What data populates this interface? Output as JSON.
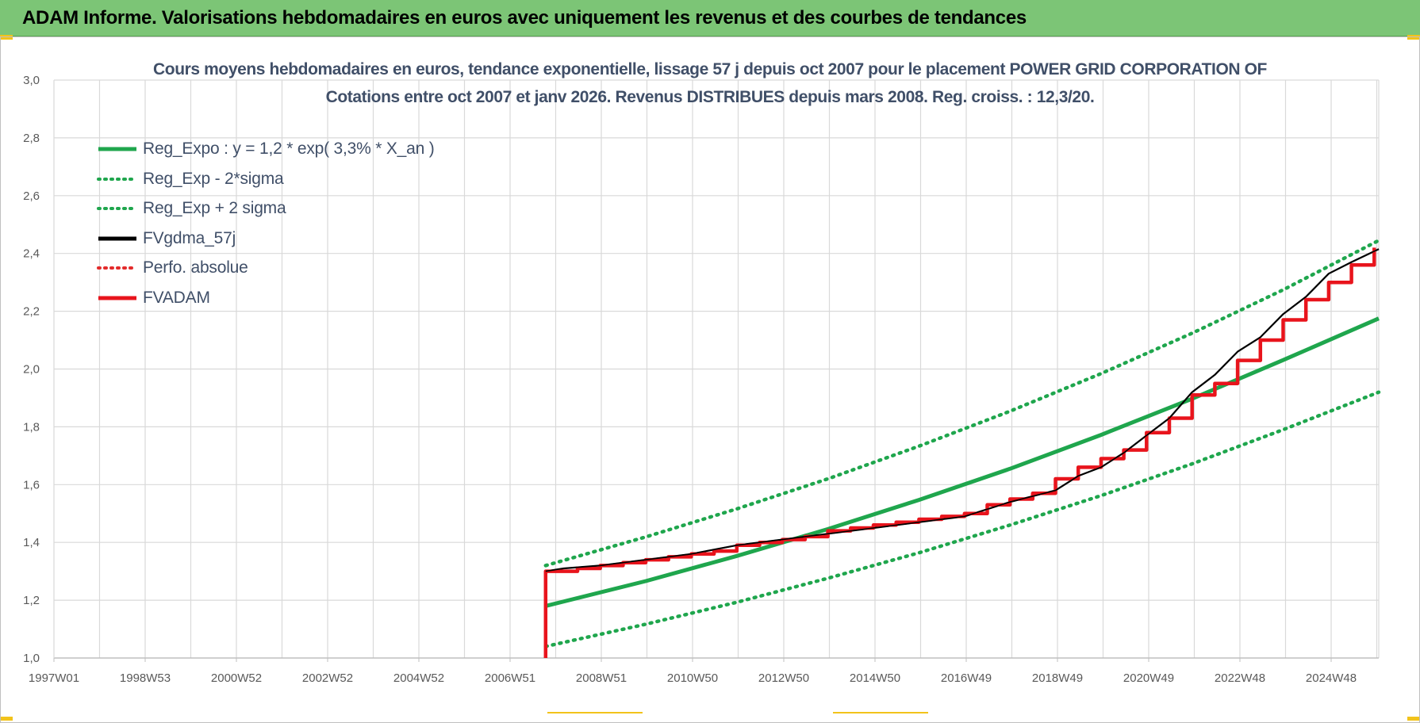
{
  "header": {
    "title": "ADAM Informe. Valorisations hebdomadaires en euros avec uniquement les revenus et des courbes de tendances"
  },
  "chart_data": {
    "type": "line",
    "title": "Cours moyens hebdomadaires en euros, tendance exponentielle, lissage 57 j depuis oct 2007 pour le placement POWER GRID CORPORATION OF",
    "subtitle": "Cotations entre oct 2007 et janv 2026. Revenus DISTRIBUES depuis mars 2008. Reg. croiss. : 12,3/20.",
    "xlabel": "",
    "ylabel": "",
    "ylim": [
      1.0,
      3.0
    ],
    "xlim": [
      1997.0,
      2026.1
    ],
    "grid": true,
    "legend_position": "top-left",
    "x_tick_labels": [
      "1997W01",
      "1998W53",
      "2000W52",
      "2002W52",
      "2004W52",
      "2006W51",
      "2008W51",
      "2010W50",
      "2012W50",
      "2014W50",
      "2016W49",
      "2018W49",
      "2020W49",
      "2022W48",
      "2024W48"
    ],
    "y_tick_labels": [
      "1,0",
      "1,2",
      "1,4",
      "1,6",
      "1,8",
      "2,0",
      "2,2",
      "2,4",
      "2,6",
      "2,8",
      "3,0"
    ],
    "series": [
      {
        "name": "Reg_Expo : y = 1,2 * exp( 3,3% *  X_an )",
        "color": "#1fa64d",
        "style": "solid",
        "x": [
          2007.8,
          2010.0,
          2012.0,
          2014.0,
          2016.0,
          2018.0,
          2020.0,
          2022.0,
          2024.0,
          2026.1
        ],
        "y": [
          1.18,
          1.266,
          1.353,
          1.446,
          1.547,
          1.655,
          1.772,
          1.897,
          2.031,
          2.175
        ]
      },
      {
        "name": "Reg_Exp - 2*sigma",
        "color": "#1fa64d",
        "style": "dotted",
        "x": [
          2007.8,
          2010.0,
          2012.0,
          2014.0,
          2016.0,
          2018.0,
          2020.0,
          2022.0,
          2024.0,
          2026.1
        ],
        "y": [
          1.04,
          1.117,
          1.193,
          1.276,
          1.364,
          1.46,
          1.562,
          1.672,
          1.79,
          1.92
        ]
      },
      {
        "name": "Reg_Exp + 2 sigma",
        "color": "#1fa64d",
        "style": "dotted",
        "x": [
          2007.8,
          2010.0,
          2012.0,
          2014.0,
          2016.0,
          2018.0,
          2020.0,
          2022.0,
          2024.0,
          2026.1
        ],
        "y": [
          1.32,
          1.419,
          1.516,
          1.62,
          1.733,
          1.854,
          1.984,
          2.124,
          2.274,
          2.445
        ]
      },
      {
        "name": "FVgdma_57j",
        "color": "#000000",
        "style": "solid",
        "x": [
          2007.8,
          2008.2,
          2009.0,
          2010.0,
          2011.0,
          2012.0,
          2013.0,
          2014.0,
          2015.0,
          2016.0,
          2017.0,
          2018.0,
          2019.0,
          2019.5,
          2020.0,
          2020.5,
          2021.0,
          2021.5,
          2022.0,
          2022.5,
          2023.0,
          2023.5,
          2024.0,
          2024.5,
          2025.0,
          2025.5,
          2026.1
        ],
        "y": [
          1.3,
          1.31,
          1.32,
          1.34,
          1.36,
          1.39,
          1.41,
          1.43,
          1.45,
          1.47,
          1.49,
          1.54,
          1.58,
          1.63,
          1.66,
          1.71,
          1.77,
          1.83,
          1.92,
          1.98,
          2.06,
          2.11,
          2.19,
          2.25,
          2.33,
          2.37,
          2.415
        ]
      },
      {
        "name": "Perfo. absolue",
        "color": "#e32b2b",
        "style": "dotted",
        "x": [],
        "y": []
      },
      {
        "name": "FVADAM",
        "color": "#e8141c",
        "style": "step",
        "x": [
          2007.8,
          2007.8,
          2008.5,
          2009.0,
          2009.5,
          2010.0,
          2010.5,
          2011.0,
          2011.5,
          2012.0,
          2012.5,
          2013.0,
          2013.5,
          2014.0,
          2014.5,
          2015.0,
          2015.5,
          2016.0,
          2016.5,
          2017.0,
          2017.5,
          2018.0,
          2018.5,
          2019.0,
          2019.5,
          2020.0,
          2020.5,
          2021.0,
          2021.5,
          2022.0,
          2022.5,
          2023.0,
          2023.5,
          2024.0,
          2024.5,
          2025.0,
          2025.5,
          2026.0
        ],
        "y": [
          1.0,
          1.3,
          1.31,
          1.32,
          1.33,
          1.34,
          1.35,
          1.36,
          1.37,
          1.39,
          1.4,
          1.41,
          1.42,
          1.44,
          1.45,
          1.46,
          1.47,
          1.48,
          1.49,
          1.5,
          1.53,
          1.55,
          1.57,
          1.62,
          1.66,
          1.69,
          1.72,
          1.78,
          1.83,
          1.91,
          1.95,
          2.03,
          2.1,
          2.17,
          2.24,
          2.3,
          2.36,
          2.42
        ]
      }
    ]
  }
}
